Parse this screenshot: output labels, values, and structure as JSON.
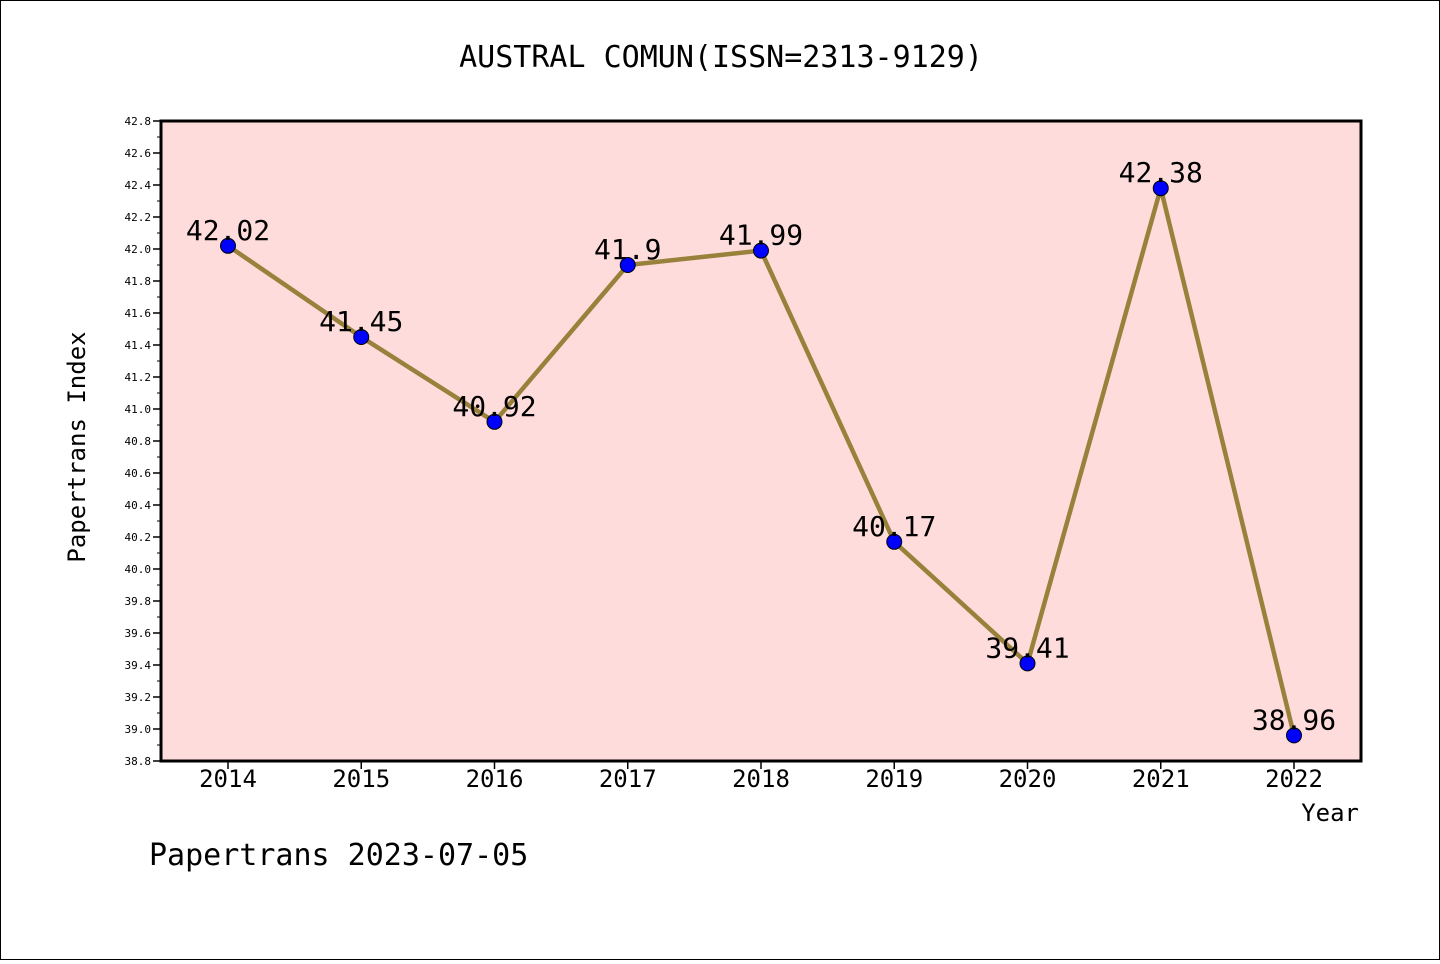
{
  "chart_data": {
    "type": "line",
    "title": "AUSTRAL COMUN(ISSN=2313-9129)",
    "xlabel": "Year",
    "ylabel": "Papertrans Index",
    "x": [
      "2014",
      "2015",
      "2016",
      "2017",
      "2018",
      "2019",
      "2020",
      "2021",
      "2022"
    ],
    "series": [
      {
        "values": [
          42.02,
          41.45,
          40.92,
          41.9,
          41.99,
          40.17,
          39.41,
          42.38,
          38.96
        ],
        "data_labels": [
          "42.02",
          "41.45",
          "40.92",
          "41.9",
          "41.99",
          "40.17",
          "39.41",
          "42.38",
          "38.96"
        ],
        "line_color": "#98813a",
        "marker_color": "#0000ff"
      }
    ],
    "ylim": [
      38.8,
      42.8
    ],
    "yticks": [
      "38.8",
      "39.0",
      "39.2",
      "39.4",
      "39.6",
      "39.8",
      "40.0",
      "40.2",
      "40.4",
      "40.6",
      "40.8",
      "41.0",
      "41.2",
      "41.4",
      "41.6",
      "41.8",
      "42.0",
      "42.2",
      "42.4",
      "42.6",
      "42.8"
    ],
    "grid": false,
    "plot_background": "#ffdcdc"
  },
  "footer": "Papertrans 2023-07-05"
}
